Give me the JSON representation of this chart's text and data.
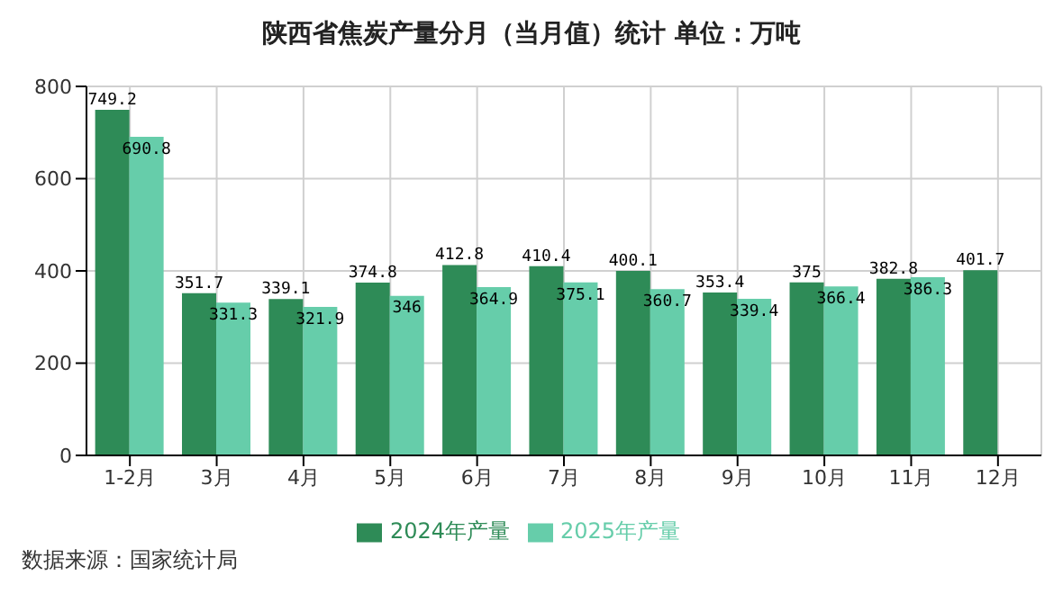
{
  "chart_data": {
    "type": "bar",
    "title": "陕西省焦炭产量分月（当月值）统计 单位：万吨",
    "categories": [
      "1-2月",
      "3月",
      "4月",
      "5月",
      "6月",
      "7月",
      "8月",
      "9月",
      "10月",
      "11月",
      "12月"
    ],
    "series": [
      {
        "name": "2024年产量",
        "color": "#2e8b57",
        "values": [
          749.2,
          351.7,
          339.1,
          374.8,
          412.8,
          410.4,
          400.1,
          353.4,
          375,
          382.8,
          401.7
        ]
      },
      {
        "name": "2025年产量",
        "color": "#66cdaa",
        "values": [
          690.8,
          331.3,
          321.9,
          346,
          364.9,
          375.1,
          360.7,
          339.4,
          366.4,
          386.3,
          null
        ]
      }
    ],
    "ylim": [
      0,
      800
    ],
    "yticks": [
      0,
      200,
      400,
      600,
      800
    ],
    "grid": true,
    "legend": "bottom",
    "data_labels": true,
    "annotations": [
      "数据来源：国家统计局"
    ]
  }
}
